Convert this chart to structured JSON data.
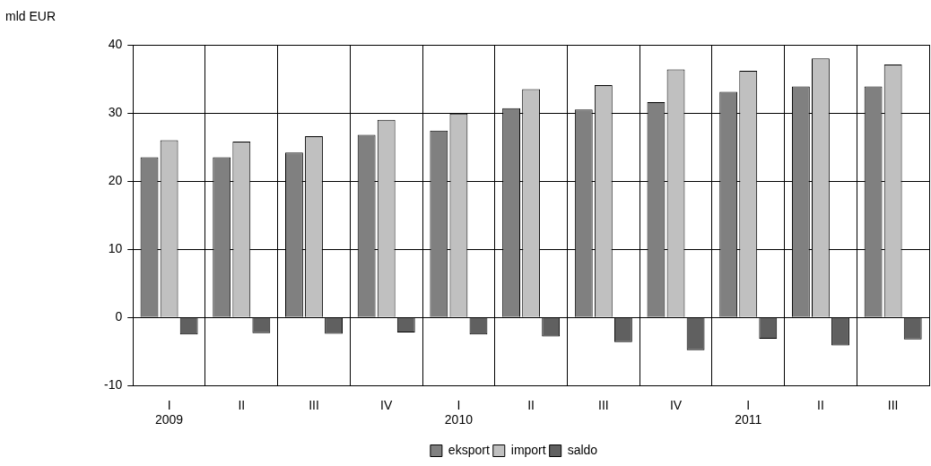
{
  "chart_data": {
    "type": "bar",
    "ylabel": "mld EUR",
    "categories": [
      "I\n2009",
      "II",
      "III",
      "IV",
      "I\n2010",
      "II",
      "III",
      "IV",
      "I\n2011",
      "II",
      "III"
    ],
    "series": [
      {
        "name": "eksport",
        "color": "#808080",
        "values": [
          23.5,
          23.5,
          24.2,
          26.8,
          27.4,
          30.7,
          30.5,
          31.6,
          33.1,
          33.9,
          33.9
        ]
      },
      {
        "name": "import",
        "color": "#c0c0c0",
        "values": [
          26.0,
          25.8,
          26.6,
          29.0,
          29.9,
          33.5,
          34.1,
          36.4,
          36.2,
          38.0,
          37.1
        ]
      },
      {
        "name": "saldo",
        "color": "#606060",
        "values": [
          -2.5,
          -2.3,
          -2.4,
          -2.2,
          -2.5,
          -2.8,
          -3.6,
          -4.8,
          -3.1,
          -4.1,
          -3.2
        ]
      }
    ],
    "ylim": [
      -10,
      40
    ],
    "yticks": [
      -10,
      0,
      10,
      20,
      30,
      40
    ],
    "grid": true,
    "legend": "bottom"
  }
}
